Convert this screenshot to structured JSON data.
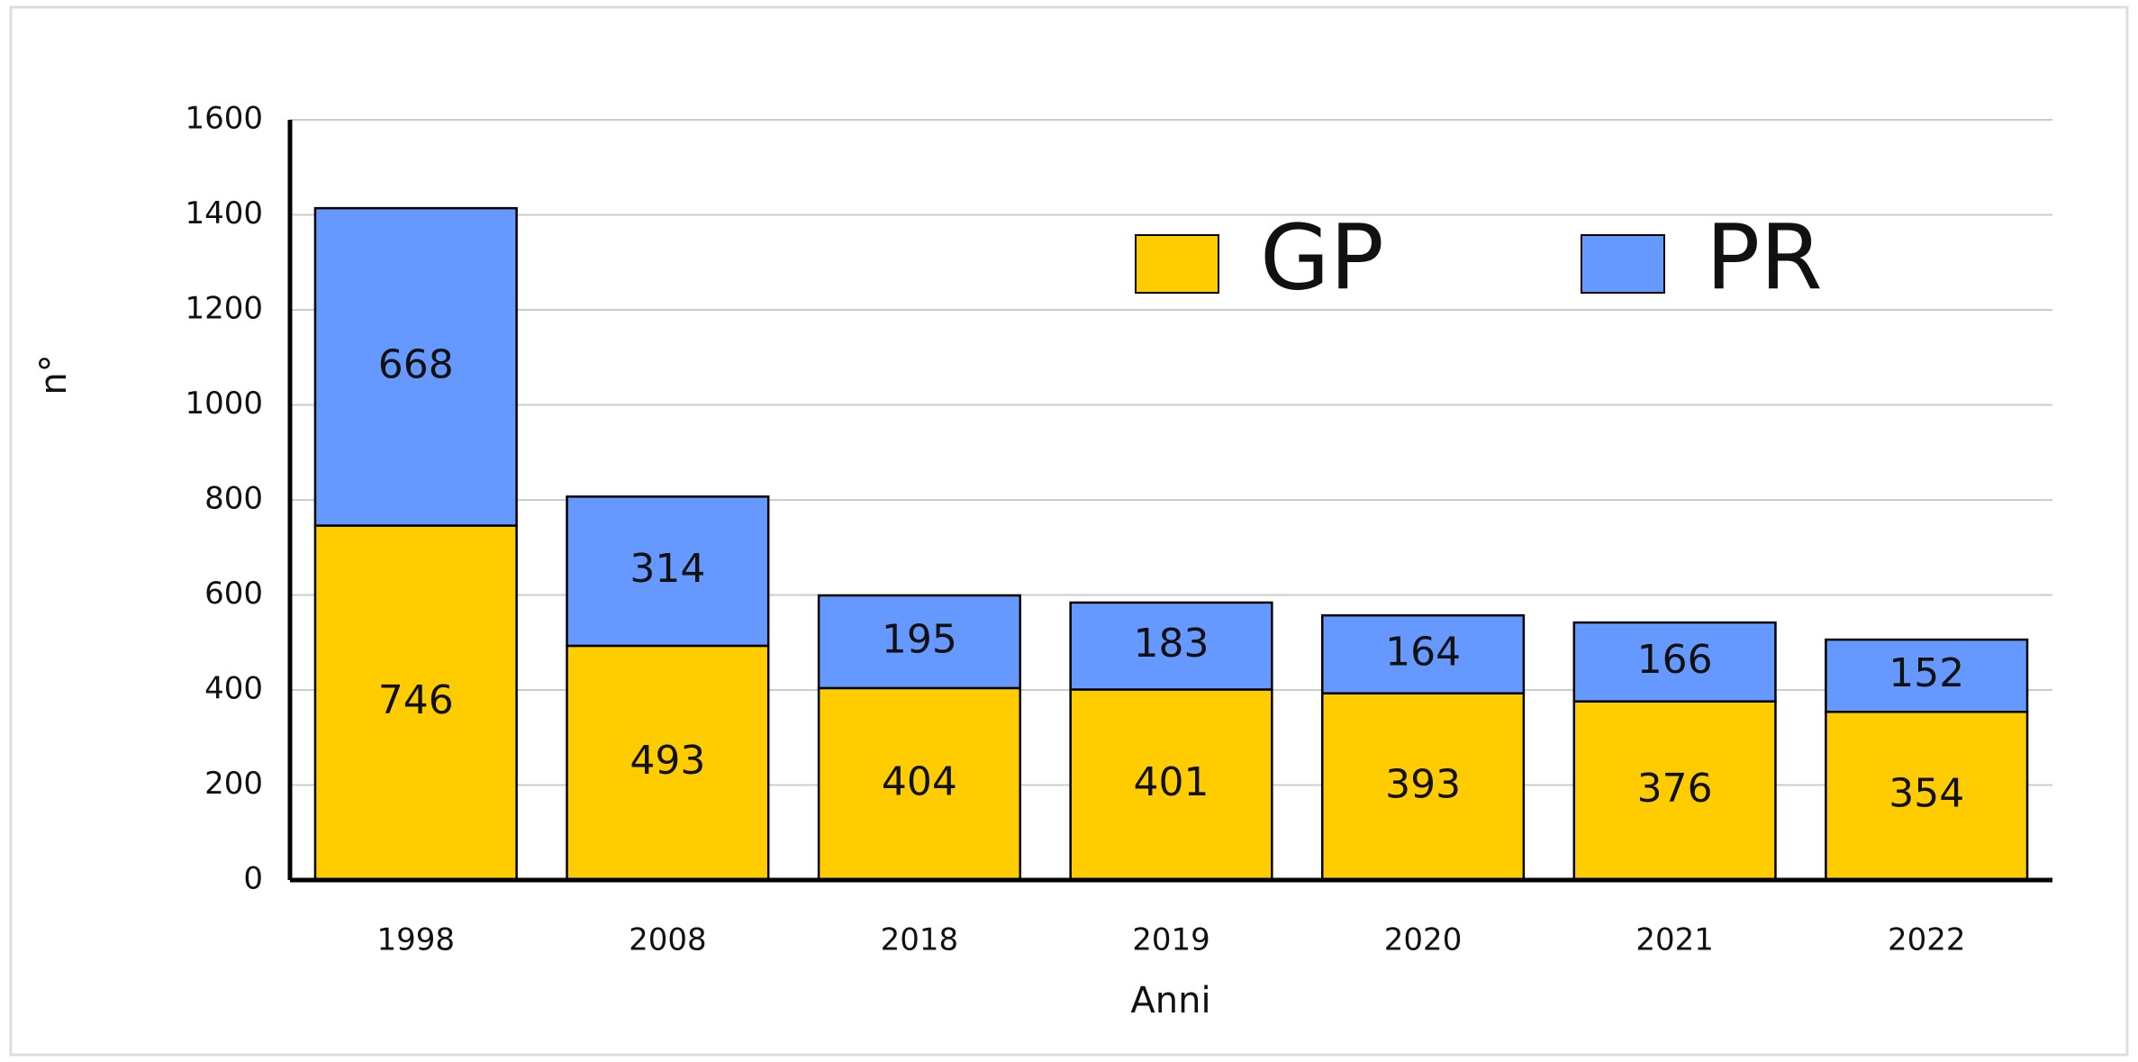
{
  "chart_data": {
    "type": "bar",
    "stacked": true,
    "categories": [
      "1998",
      "2008",
      "2018",
      "2019",
      "2020",
      "2021",
      "2022"
    ],
    "series": [
      {
        "name": "GP",
        "color": "#ffcc00",
        "values": [
          746,
          493,
          404,
          401,
          393,
          376,
          354
        ]
      },
      {
        "name": "PR",
        "color": "#6699ff",
        "values": [
          668,
          314,
          195,
          183,
          164,
          166,
          152
        ]
      }
    ],
    "ylim": [
      0,
      1600
    ],
    "yticks": [
      0,
      200,
      400,
      600,
      800,
      1000,
      1200,
      1400,
      1600
    ],
    "ylabel": "n°",
    "xlabel": "Anni",
    "grid": true,
    "legend": "top-right"
  }
}
